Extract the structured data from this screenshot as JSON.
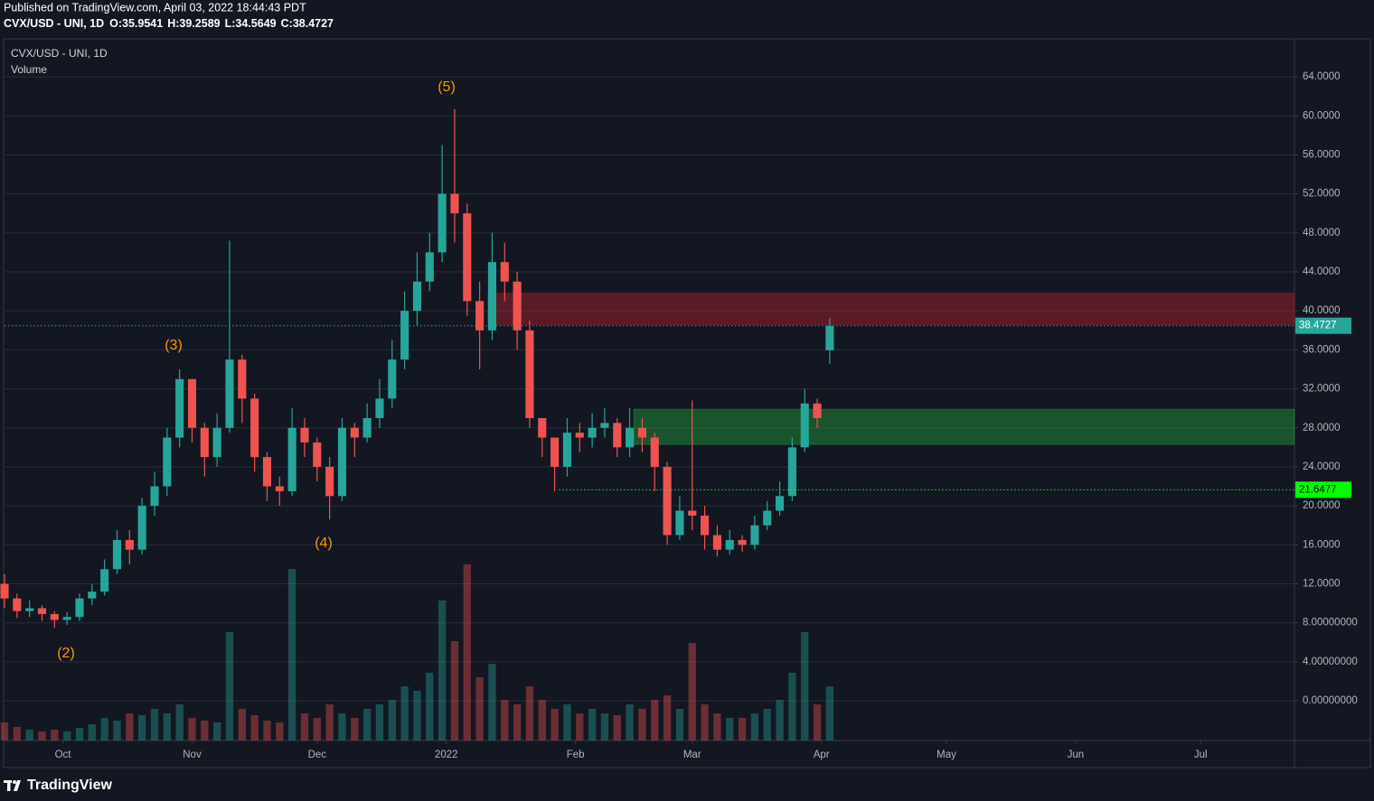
{
  "header": {
    "published": "Published on TradingView.com, April 03, 2022 18:44:43 PDT",
    "ohlc_labels": [
      "O:",
      "H:",
      "L:",
      "C:"
    ]
  },
  "footer": {
    "brand": "TradingView"
  },
  "chart_data": {
    "type": "candlestick",
    "title": "CVX/USD - UNI, 1D",
    "volume_name": "Volume",
    "x": [
      0,
      3,
      6,
      9,
      12,
      15,
      18,
      21,
      24,
      27,
      30,
      33,
      36,
      39,
      42,
      45,
      48,
      51,
      54,
      57,
      60,
      63,
      66,
      69,
      72,
      75,
      78,
      81,
      84,
      87,
      90,
      93,
      96,
      99,
      102,
      105,
      108,
      111,
      114,
      117,
      120,
      123,
      126,
      129,
      132,
      135,
      138,
      141,
      144,
      147,
      150,
      153,
      156,
      159,
      162,
      165,
      168,
      171,
      174,
      177,
      180,
      183,
      186,
      189,
      192,
      195,
      198
    ],
    "open": [
      12,
      10.5,
      9.2,
      9.5,
      8.9,
      8.3,
      8.6,
      10.5,
      11.2,
      13.5,
      16.5,
      15.5,
      20,
      22,
      27,
      33,
      28,
      25,
      28,
      35,
      31,
      25,
      22,
      21.5,
      28,
      26.5,
      24,
      21,
      28,
      27,
      29,
      31,
      35,
      40,
      43,
      46,
      52,
      50,
      41,
      38,
      45,
      43,
      38,
      29,
      27,
      24,
      27.5,
      27,
      28,
      28.5,
      26,
      28,
      27,
      24,
      17,
      19.5,
      19,
      17,
      15.5,
      16.5,
      16,
      18,
      19.5,
      21,
      26,
      30.5,
      35.9541
    ],
    "high": [
      13,
      11,
      10.3,
      9.8,
      9.2,
      9.1,
      11,
      12,
      14.5,
      17.5,
      17.5,
      20.8,
      23.5,
      28,
      34,
      33,
      28.5,
      29.5,
      47.2,
      35.5,
      31.5,
      25.5,
      23,
      30,
      29,
      27,
      25,
      29,
      28.5,
      30.5,
      33,
      37,
      42,
      46,
      48,
      57,
      60.7,
      51,
      43,
      48,
      47,
      44,
      39,
      29,
      27,
      29,
      28.5,
      29.5,
      30,
      29,
      30,
      29,
      27.5,
      24.5,
      21,
      30.8,
      20,
      18,
      17.5,
      17,
      19,
      20.5,
      22.5,
      27,
      32,
      31,
      39.2589
    ],
    "low": [
      9.5,
      8.5,
      8.6,
      8.2,
      7.5,
      7.8,
      8.2,
      9.8,
      10.8,
      13,
      14,
      15,
      19,
      21,
      26,
      26.5,
      23,
      24,
      27.5,
      28.5,
      23.5,
      20.5,
      20,
      21,
      25,
      22.5,
      18.6,
      20.5,
      25,
      26.5,
      28,
      30,
      34,
      38.5,
      42,
      45,
      47,
      39.5,
      34,
      37,
      41,
      36,
      28,
      25,
      21.5,
      23,
      25.5,
      26,
      27,
      25,
      25,
      25.5,
      21.5,
      16,
      16.5,
      17.5,
      15.5,
      14.8,
      15,
      15.3,
      15.5,
      17.5,
      19,
      20.5,
      25.5,
      28,
      34.5649
    ],
    "close": [
      10.5,
      9.2,
      9.5,
      8.9,
      8.3,
      8.6,
      10.5,
      11.2,
      13.5,
      16.5,
      15.5,
      20,
      22,
      27,
      33,
      28,
      25,
      28,
      35,
      31,
      25,
      22,
      21.5,
      28,
      26.5,
      24,
      21,
      28,
      27,
      29,
      31,
      35,
      40,
      43,
      46,
      52,
      50,
      41,
      38,
      45,
      43,
      38,
      29,
      27,
      24,
      27.5,
      27,
      28,
      28.5,
      26,
      28,
      27,
      24,
      17,
      19.5,
      19,
      17,
      15.5,
      16.5,
      16,
      18,
      19.5,
      21,
      26,
      30.5,
      29,
      38.4727
    ],
    "volume": [
      20,
      15,
      12,
      10,
      12,
      10,
      14,
      18,
      25,
      22,
      30,
      28,
      35,
      30,
      40,
      25,
      22,
      20,
      120,
      35,
      28,
      22,
      20,
      190,
      30,
      25,
      40,
      30,
      25,
      35,
      40,
      45,
      60,
      55,
      75,
      155,
      110,
      195,
      70,
      85,
      45,
      40,
      60,
      45,
      35,
      40,
      30,
      35,
      30,
      28,
      40,
      35,
      45,
      50,
      35,
      108,
      40,
      30,
      25,
      25,
      30,
      35,
      45,
      75,
      120,
      40,
      60
    ],
    "up_color": "#26a69a",
    "down_color": "#ef5350",
    "xlim": [
      0,
      309.5
    ],
    "xticks": [
      {
        "value": 14,
        "label": "Oct"
      },
      {
        "value": 45,
        "label": "Nov"
      },
      {
        "value": 75,
        "label": "Dec"
      },
      {
        "value": 106,
        "label": "2022"
      },
      {
        "value": 137,
        "label": "Feb"
      },
      {
        "value": 165,
        "label": "Mar"
      },
      {
        "value": 196,
        "label": "Apr"
      },
      {
        "value": 226,
        "label": "May"
      },
      {
        "value": 257,
        "label": "Jun"
      },
      {
        "value": 287,
        "label": "Jul"
      }
    ],
    "ylim": [
      -4.07,
      67.9
    ],
    "yticks": [
      {
        "value": 0,
        "label": "0.00000000"
      },
      {
        "value": 4,
        "label": "4.00000000"
      },
      {
        "value": 8,
        "label": "8.00000000"
      },
      {
        "value": 12,
        "label": "12.0000"
      },
      {
        "value": 16,
        "label": "16.0000"
      },
      {
        "value": 20,
        "label": "20.0000"
      },
      {
        "value": 24,
        "label": "24.0000"
      },
      {
        "value": 28,
        "label": "28.0000"
      },
      {
        "value": 32,
        "label": "32.0000"
      },
      {
        "value": 36,
        "label": "36.0000"
      },
      {
        "value": 40,
        "label": "40.0000"
      },
      {
        "value": 44,
        "label": "44.0000"
      },
      {
        "value": 48,
        "label": "48.0000"
      },
      {
        "value": 52,
        "label": "52.0000"
      },
      {
        "value": 56,
        "label": "56.0000"
      },
      {
        "value": 60,
        "label": "60.0000"
      },
      {
        "value": 64,
        "label": "64.0000"
      }
    ],
    "grid": true,
    "zones": [
      {
        "from": 116,
        "low": 38.6,
        "high": 41.8,
        "color": "rgba(178,34,52,0.45)"
      },
      {
        "from": 151,
        "low": 26.3,
        "high": 29.9,
        "color": "rgba(34,160,60,0.45)"
      }
    ],
    "levels": [
      {
        "value": 38.4727,
        "from": 0,
        "color": "#26a69a",
        "text_color": "#ffffff"
      },
      {
        "value": 21.6477,
        "from": 133,
        "color": "#00ff00",
        "text_color": "#000000"
      }
    ],
    "annotations": [
      "(2)",
      "(3)",
      "(4)",
      "(5)"
    ],
    "annotation_color": "#ff9800"
  }
}
